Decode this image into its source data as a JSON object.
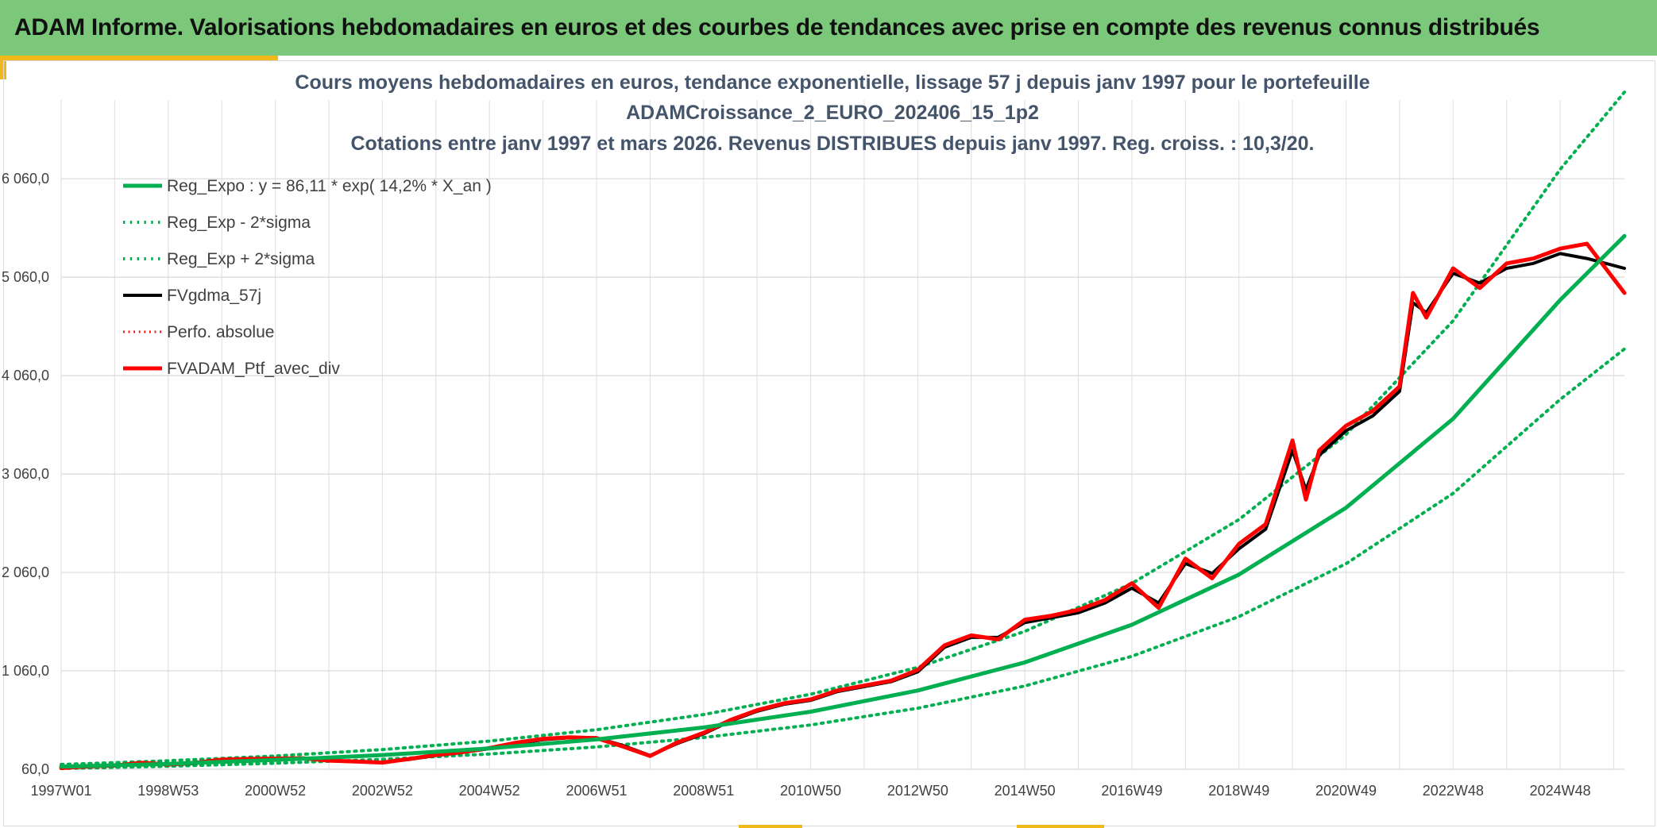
{
  "banner": {
    "title": "ADAM Informe. Valorisations hebdomadaires en euros et des courbes de tendances avec prise en compte des revenus connus distribués"
  },
  "colors": {
    "banner_bg": "#7bc87a",
    "accent_yellow": "#f0b818",
    "reg_green": "#00b050",
    "fvgdma_black": "#000000",
    "ptf_red": "#ff0000",
    "grid": "#d9d9d9",
    "title_color": "#44546a"
  },
  "chart_data": {
    "type": "line",
    "title": [
      "Cours moyens hebdomadaires en euros, tendance exponentielle, lissage 57 j depuis janv 1997 pour le portefeuille",
      "ADAMCroissance_2_EURO_202406_15_1p2",
      "Cotations entre janv 1997 et mars 2026. Revenus DISTRIBUES depuis janv 1997. Reg. croiss. : 10,3/20."
    ],
    "xlabel": "",
    "ylabel": "",
    "x_range": [
      1997.0,
      2026.2
    ],
    "ylim": [
      60,
      6860
    ],
    "yticks": [
      {
        "value": 60,
        "label": "60,0"
      },
      {
        "value": 1060,
        "label": "1 060,0"
      },
      {
        "value": 2060,
        "label": "2 060,0"
      },
      {
        "value": 3060,
        "label": "3 060,0"
      },
      {
        "value": 4060,
        "label": "4 060,0"
      },
      {
        "value": 5060,
        "label": "5 060,0"
      },
      {
        "value": 6060,
        "label": "6 060,0"
      }
    ],
    "xticks": [
      {
        "value": 1997.0,
        "label": "1997W01"
      },
      {
        "value": 1999.0,
        "label": "1998W53"
      },
      {
        "value": 2001.0,
        "label": "2000W52"
      },
      {
        "value": 2003.0,
        "label": "2002W52"
      },
      {
        "value": 2005.0,
        "label": "2004W52"
      },
      {
        "value": 2007.0,
        "label": "2006W51"
      },
      {
        "value": 2009.0,
        "label": "2008W51"
      },
      {
        "value": 2011.0,
        "label": "2010W50"
      },
      {
        "value": 2013.0,
        "label": "2012W50"
      },
      {
        "value": 2015.0,
        "label": "2014W50"
      },
      {
        "value": 2017.0,
        "label": "2016W49"
      },
      {
        "value": 2019.0,
        "label": "2018W49"
      },
      {
        "value": 2021.0,
        "label": "2020W49"
      },
      {
        "value": 2023.0,
        "label": "2022W48"
      },
      {
        "value": 2025.0,
        "label": "2024W48"
      }
    ],
    "grid": true,
    "legend_position": "top-left",
    "series": [
      {
        "name": "Reg_Expo : y = 86,11 * exp( 14,2% *  X_an )",
        "style": "solid",
        "color": "#00b050",
        "width": 5,
        "x": [
          1997,
          1999,
          2001,
          2003,
          2005,
          2007,
          2009,
          2011,
          2013,
          2015,
          2017,
          2019,
          2021,
          2023,
          2025,
          2026.2
        ],
        "values": [
          86,
          115,
          154,
          204,
          272,
          363,
          484,
          645,
          860,
          1146,
          1528,
          2038,
          2717,
          3621,
          4828,
          5478
        ]
      },
      {
        "name": "Reg_Exp - 2*sigma",
        "style": "dotted",
        "color": "#00b050",
        "width": 4,
        "x": [
          1997,
          1999,
          2001,
          2003,
          2005,
          2007,
          2009,
          2011,
          2013,
          2015,
          2017,
          2019,
          2021,
          2023,
          2025,
          2026.2
        ],
        "values": [
          68,
          91,
          121,
          161,
          215,
          287,
          383,
          510,
          680,
          906,
          1208,
          1611,
          2148,
          2863,
          3817,
          4330
        ]
      },
      {
        "name": "Reg_Exp + 2*sigma",
        "style": "dotted",
        "color": "#00b050",
        "width": 4,
        "x": [
          1997,
          1999,
          2001,
          2003,
          2005,
          2007,
          2009,
          2011,
          2013,
          2015,
          2017,
          2019,
          2021,
          2023,
          2025,
          2026.2
        ],
        "values": [
          108,
          146,
          195,
          260,
          346,
          462,
          616,
          822,
          1096,
          1461,
          1948,
          2597,
          3462,
          4617,
          6156,
          6940
        ]
      },
      {
        "name": "FVgdma_57j",
        "style": "solid",
        "color": "#000000",
        "width": 4,
        "x": [
          1997,
          1997.5,
          1998,
          1998.5,
          1999,
          1999.5,
          2000,
          2000.5,
          2001,
          2001.5,
          2002,
          2002.5,
          2003,
          2003.5,
          2004,
          2004.5,
          2005,
          2005.5,
          2006,
          2006.5,
          2007,
          2007.5,
          2008,
          2008.5,
          2009,
          2009.5,
          2010,
          2010.5,
          2011,
          2011.5,
          2012,
          2012.5,
          2013,
          2013.5,
          2014,
          2014.5,
          2015,
          2015.5,
          2016,
          2016.5,
          2017,
          2017.5,
          2018,
          2018.5,
          2019,
          2019.5,
          2020,
          2020.25,
          2020.5,
          2021,
          2021.5,
          2022,
          2022.25,
          2022.5,
          2023,
          2023.5,
          2024,
          2024.5,
          2025,
          2025.5,
          2026.2
        ],
        "values": [
          70,
          85,
          95,
          120,
          105,
          120,
          150,
          160,
          165,
          170,
          150,
          140,
          130,
          160,
          200,
          230,
          270,
          320,
          360,
          380,
          380,
          300,
          200,
          320,
          420,
          550,
          650,
          720,
          760,
          850,
          900,
          950,
          1050,
          1300,
          1400,
          1400,
          1550,
          1600,
          1650,
          1750,
          1900,
          1750,
          2150,
          2050,
          2300,
          2500,
          3300,
          2900,
          3250,
          3500,
          3650,
          3900,
          4800,
          4700,
          5100,
          5000,
          5150,
          5200,
          5300,
          5250,
          5150
        ]
      },
      {
        "name": "Perfo. absolue",
        "style": "dotted",
        "color": "#ff0000",
        "width": 3,
        "x": [],
        "values": []
      },
      {
        "name": "FVADAM_Ptf_avec_div",
        "style": "solid",
        "color": "#ff0000",
        "width": 5,
        "x": [
          1997,
          1997.5,
          1998,
          1998.5,
          1999,
          1999.5,
          2000,
          2000.5,
          2001,
          2001.5,
          2002,
          2002.5,
          2003,
          2003.5,
          2004,
          2004.5,
          2005,
          2005.5,
          2006,
          2006.5,
          2007,
          2007.5,
          2008,
          2008.5,
          2009,
          2009.5,
          2010,
          2010.5,
          2011,
          2011.5,
          2012,
          2012.5,
          2013,
          2013.5,
          2014,
          2014.5,
          2015,
          2015.5,
          2016,
          2016.5,
          2017,
          2017.5,
          2018,
          2018.5,
          2019,
          2019.5,
          2020,
          2020.25,
          2020.5,
          2021,
          2021.5,
          2022,
          2022.25,
          2022.5,
          2023,
          2023.5,
          2024,
          2024.5,
          2025,
          2025.5,
          2026.2
        ],
        "values": [
          72,
          88,
          98,
          125,
          108,
          125,
          158,
          165,
          168,
          172,
          148,
          138,
          128,
          165,
          205,
          235,
          275,
          330,
          370,
          385,
          375,
          290,
          195,
          330,
          430,
          560,
          660,
          730,
          770,
          860,
          910,
          960,
          1070,
          1320,
          1420,
          1380,
          1580,
          1620,
          1680,
          1780,
          1950,
          1700,
          2200,
          2000,
          2350,
          2550,
          3400,
          2800,
          3300,
          3550,
          3700,
          3950,
          4900,
          4650,
          5150,
          4950,
          5200,
          5250,
          5350,
          5400,
          4900
        ]
      }
    ]
  }
}
